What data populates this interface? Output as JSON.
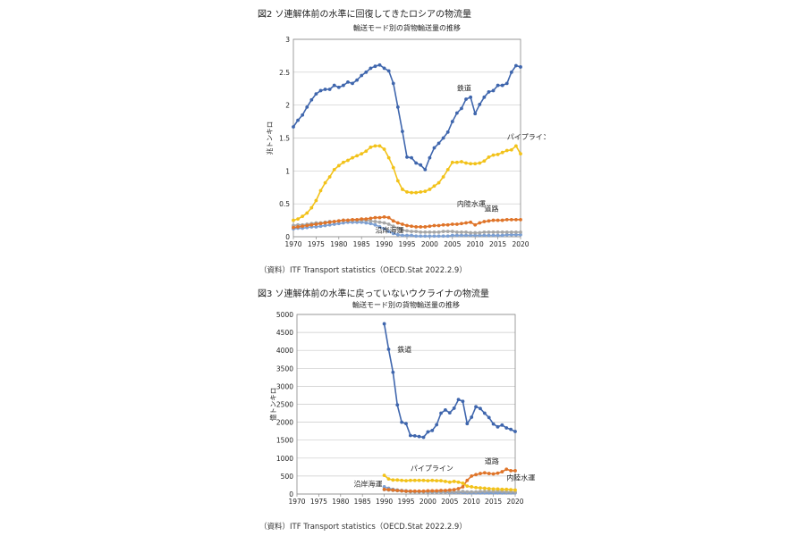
{
  "figures": [
    {
      "heading": "図2 ソ連解体前の水準に回復してきたロシアの物流量",
      "source": "（資料）ITF Transport statistics（OECD.Stat 2022.2.9）"
    },
    {
      "heading": "図3 ソ連解体前の水準に戻っていないウクライナの物流量",
      "source": "（資料）ITF Transport statistics（OECD.Stat 2022.2.9）"
    }
  ],
  "chart_data": [
    {
      "type": "line",
      "title": "輸送モード別の貨物輸送量の推移",
      "xlabel": "",
      "ylabel": "兆トンキロ",
      "xlim": [
        1970,
        2020
      ],
      "ylim": [
        0,
        3
      ],
      "xticks": [
        1970,
        1975,
        1980,
        1985,
        1990,
        1995,
        2000,
        2005,
        2010,
        2015,
        2020
      ],
      "yticks": [
        0,
        0.5,
        1,
        1.5,
        2,
        2.5,
        3
      ],
      "ytick_labels": [
        "0",
        "0.5",
        "1",
        "1.5",
        "2",
        "2.5",
        "3"
      ],
      "grid": true,
      "x": [
        1970,
        1971,
        1972,
        1973,
        1974,
        1975,
        1976,
        1977,
        1978,
        1979,
        1980,
        1981,
        1982,
        1983,
        1984,
        1985,
        1986,
        1987,
        1988,
        1989,
        1990,
        1991,
        1992,
        1993,
        1994,
        1995,
        1996,
        1997,
        1998,
        1999,
        2000,
        2001,
        2002,
        2003,
        2004,
        2005,
        2006,
        2007,
        2008,
        2009,
        2010,
        2011,
        2012,
        2013,
        2014,
        2015,
        2016,
        2017,
        2018,
        2019,
        2020
      ],
      "series": [
        {
          "name": "鉄道",
          "color": "#3f66ad",
          "values": [
            1.67,
            1.77,
            1.85,
            1.97,
            2.08,
            2.17,
            2.22,
            2.24,
            2.24,
            2.3,
            2.27,
            2.3,
            2.35,
            2.33,
            2.38,
            2.45,
            2.5,
            2.56,
            2.59,
            2.61,
            2.56,
            2.52,
            2.33,
            1.97,
            1.6,
            1.21,
            1.2,
            1.12,
            1.09,
            1.02,
            1.2,
            1.35,
            1.42,
            1.5,
            1.59,
            1.75,
            1.88,
            1.95,
            2.09,
            2.12,
            1.87,
            2.01,
            2.12,
            2.2,
            2.22,
            2.3,
            2.3,
            2.33,
            2.5,
            2.6,
            2.58
          ]
        },
        {
          "name": "パイプライン",
          "color": "#f2c21a",
          "values": [
            0.25,
            0.27,
            0.31,
            0.36,
            0.44,
            0.55,
            0.7,
            0.82,
            0.91,
            1.02,
            1.08,
            1.13,
            1.16,
            1.2,
            1.23,
            1.26,
            1.3,
            1.36,
            1.38,
            1.38,
            1.33,
            1.2,
            1.05,
            0.85,
            0.72,
            0.68,
            0.67,
            0.67,
            0.68,
            0.69,
            0.72,
            0.77,
            0.82,
            0.91,
            1.02,
            1.13,
            1.13,
            1.14,
            1.12,
            1.11,
            1.11,
            1.12,
            1.15,
            1.21,
            1.24,
            1.25,
            1.28,
            1.31,
            1.32,
            1.38,
            1.26
          ]
        },
        {
          "name": "道路",
          "color": "#df7429",
          "values": [
            0.14,
            0.15,
            0.16,
            0.17,
            0.18,
            0.19,
            0.2,
            0.21,
            0.22,
            0.23,
            0.24,
            0.25,
            0.25,
            0.26,
            0.26,
            0.27,
            0.27,
            0.28,
            0.29,
            0.29,
            0.3,
            0.29,
            0.24,
            0.21,
            0.19,
            0.17,
            0.16,
            0.15,
            0.15,
            0.15,
            0.16,
            0.17,
            0.17,
            0.18,
            0.18,
            0.19,
            0.19,
            0.2,
            0.21,
            0.22,
            0.18,
            0.21,
            0.23,
            0.24,
            0.25,
            0.25,
            0.25,
            0.26,
            0.26,
            0.26,
            0.26
          ]
        },
        {
          "name": "内陸水運",
          "color": "#a6a6a6",
          "values": [
            0.17,
            0.18,
            0.18,
            0.19,
            0.2,
            0.21,
            0.21,
            0.22,
            0.23,
            0.23,
            0.24,
            0.25,
            0.25,
            0.25,
            0.25,
            0.25,
            0.25,
            0.24,
            0.23,
            0.22,
            0.21,
            0.19,
            0.16,
            0.13,
            0.1,
            0.09,
            0.08,
            0.08,
            0.07,
            0.07,
            0.07,
            0.07,
            0.07,
            0.08,
            0.08,
            0.08,
            0.07,
            0.07,
            0.07,
            0.06,
            0.06,
            0.06,
            0.07,
            0.07,
            0.07,
            0.07,
            0.07,
            0.07,
            0.07,
            0.07,
            0.07
          ]
        },
        {
          "name": "沿岸海運",
          "color": "#7b9fd3",
          "values": [
            0.12,
            0.13,
            0.13,
            0.14,
            0.15,
            0.15,
            0.16,
            0.17,
            0.18,
            0.19,
            0.2,
            0.21,
            0.22,
            0.22,
            0.22,
            0.22,
            0.21,
            0.2,
            0.18,
            0.15,
            0.12,
            0.08,
            0.05,
            0.03,
            0.02,
            0.02,
            0.02,
            0.01,
            0.01,
            0.01,
            0.01,
            0.01,
            0.01,
            0.01,
            0.01,
            0.02,
            0.02,
            0.02,
            0.02,
            0.02,
            0.02,
            0.02,
            0.02,
            0.02,
            0.02,
            0.02,
            0.02,
            0.03,
            0.03,
            0.03,
            0.03
          ]
        }
      ],
      "annotations": [
        {
          "text": "鉄道",
          "series": "鉄道",
          "x": 2006,
          "y": 2.22
        },
        {
          "text": "パイプライン",
          "series": "パイプライン",
          "x": 2017,
          "y": 1.48
        },
        {
          "text": "内陸水運",
          "series": "内陸水運",
          "x": 2006,
          "y": 0.46
        },
        {
          "text": "道路",
          "series": "道路",
          "x": 2012,
          "y": 0.39
        },
        {
          "text": "沿岸海運",
          "series": "沿岸海運",
          "x": 1988,
          "y": 0.06
        }
      ]
    },
    {
      "type": "line",
      "title": "輸送モード別の貨物輸送量の推移",
      "xlabel": "",
      "ylabel": "億トンキロ",
      "xlim": [
        1970,
        2020
      ],
      "ylim": [
        0,
        5000
      ],
      "xticks": [
        1970,
        1975,
        1980,
        1985,
        1990,
        1995,
        2000,
        2005,
        2010,
        2015,
        2020
      ],
      "yticks": [
        0,
        500,
        1000,
        1500,
        2000,
        2500,
        3000,
        3500,
        4000,
        4500,
        5000
      ],
      "ytick_labels": [
        "0",
        "500",
        "1000",
        "1500",
        "2000",
        "2500",
        "3000",
        "3500",
        "4000",
        "4500",
        "5000"
      ],
      "grid": true,
      "x": [
        1990,
        1991,
        1992,
        1993,
        1994,
        1995,
        1996,
        1997,
        1998,
        1999,
        2000,
        2001,
        2002,
        2003,
        2004,
        2005,
        2006,
        2007,
        2008,
        2009,
        2010,
        2011,
        2012,
        2013,
        2014,
        2015,
        2016,
        2017,
        2018,
        2019,
        2020
      ],
      "series": [
        {
          "name": "鉄道",
          "color": "#3f66ad",
          "values": [
            4740,
            4030,
            3390,
            2480,
            2000,
            1960,
            1630,
            1620,
            1600,
            1580,
            1730,
            1770,
            1930,
            2250,
            2340,
            2260,
            2390,
            2630,
            2580,
            1960,
            2140,
            2430,
            2380,
            2250,
            2130,
            1950,
            1870,
            1920,
            1840,
            1800,
            1740
          ]
        },
        {
          "name": "パイプライン",
          "color": "#f2c21a",
          "values": [
            520,
            420,
            390,
            390,
            380,
            370,
            380,
            380,
            380,
            380,
            370,
            380,
            370,
            370,
            350,
            330,
            350,
            330,
            300,
            220,
            200,
            180,
            170,
            160,
            150,
            140,
            140,
            130,
            130,
            120,
            110
          ]
        },
        {
          "name": "道路",
          "color": "#df7429",
          "values": [
            130,
            120,
            110,
            100,
            90,
            80,
            80,
            80,
            80,
            80,
            90,
            90,
            90,
            100,
            100,
            110,
            120,
            150,
            200,
            380,
            500,
            540,
            570,
            590,
            570,
            560,
            580,
            620,
            690,
            650,
            650
          ]
        },
        {
          "name": "内陸水運",
          "color": "#a6a6a6",
          "values": [
            120,
            110,
            100,
            90,
            80,
            70,
            60,
            60,
            60,
            60,
            60,
            60,
            60,
            60,
            60,
            60,
            60,
            60,
            70,
            60,
            60,
            60,
            70,
            70,
            80,
            70,
            80,
            70,
            60,
            60,
            50
          ]
        },
        {
          "name": "沿岸海運",
          "color": "#7b9fd3",
          "values": [
            200,
            160,
            130,
            110,
            100,
            90,
            80,
            70,
            60,
            60,
            50,
            50,
            50,
            50,
            50,
            40,
            40,
            40,
            40,
            30,
            30,
            30,
            30,
            30,
            30,
            30,
            30,
            30,
            30,
            30,
            30
          ]
        }
      ],
      "annotations": [
        {
          "text": "鉄道",
          "series": "鉄道",
          "x": 1993,
          "y": 3950
        },
        {
          "text": "パイプライン",
          "series": "パイプライン",
          "x": 1996,
          "y": 650
        },
        {
          "text": "道路",
          "series": "道路",
          "x": 2013,
          "y": 850
        },
        {
          "text": "内陸水運",
          "series": "内陸水運",
          "x": 2018,
          "y": 390
        },
        {
          "text": "沿岸海運",
          "series": "沿岸海運",
          "x": 1983,
          "y": 210
        }
      ]
    }
  ]
}
